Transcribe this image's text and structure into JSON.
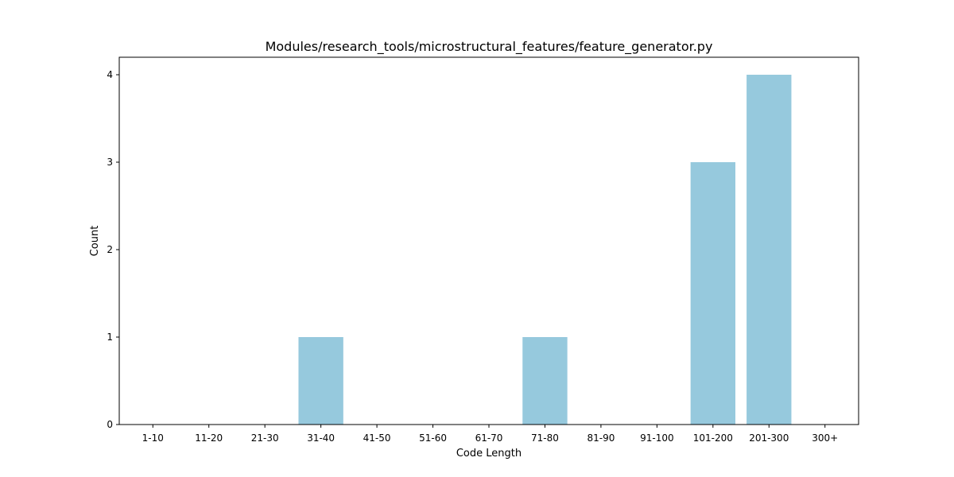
{
  "chart_data": {
    "type": "bar",
    "title": "Modules/research_tools/microstructural_features/feature_generator.py",
    "xlabel": "Code Length",
    "ylabel": "Count",
    "categories": [
      "1-10",
      "11-20",
      "21-30",
      "31-40",
      "41-50",
      "51-60",
      "61-70",
      "71-80",
      "81-90",
      "91-100",
      "101-200",
      "201-300",
      "300+"
    ],
    "values": [
      0,
      0,
      0,
      1,
      0,
      0,
      0,
      1,
      0,
      0,
      3,
      4,
      0
    ],
    "ylim": [
      0,
      4.2
    ],
    "yticks": [
      "0",
      "1",
      "2",
      "3",
      "4"
    ],
    "bar_color": "#96c9dd",
    "grid": false,
    "legend": "none"
  }
}
